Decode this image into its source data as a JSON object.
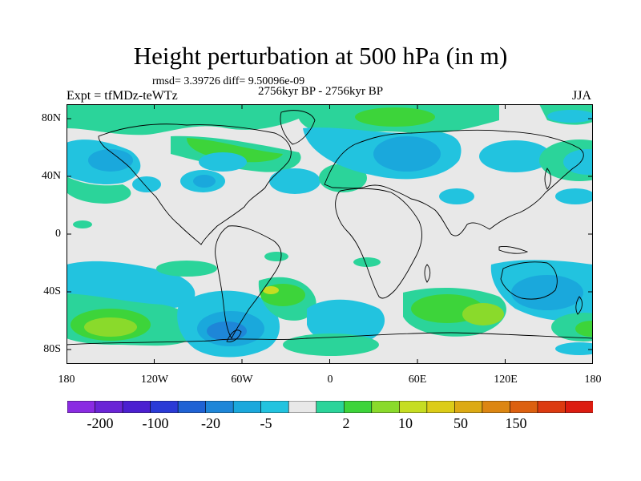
{
  "title": "Height perturbation at 500 hPa (in m)",
  "stats": "rmsd= 3.39726 diff= 9.50096e-09",
  "period": "2756kyr BP - 2756kyr BP",
  "experiment": "Expt = tfMDz-teWTz",
  "season": "JJA",
  "lat_ticks": [
    "80N",
    "40N",
    "0",
    "40S",
    "80S"
  ],
  "lon_ticks": [
    "180",
    "120W",
    "60W",
    "0",
    "60E",
    "120E",
    "180"
  ],
  "colorbar": {
    "labels": [
      "-200",
      "-100",
      "-20",
      "-5",
      "2",
      "10",
      "50",
      "150"
    ],
    "colors": [
      "#8a2be2",
      "#6a24d6",
      "#4b1fd0",
      "#2a3ad6",
      "#1f62d4",
      "#1e86d8",
      "#1aa8dc",
      "#22c3df",
      "#e8e8e8",
      "#2bd49a",
      "#3dd43a",
      "#8ada2b",
      "#c6dd22",
      "#dccc18",
      "#dcaa14",
      "#dc8612",
      "#dc6010",
      "#dc3a10",
      "#dc1c10"
    ]
  },
  "palette": {
    "background": "#e8e8e8",
    "light_blue": "#22c3df",
    "mid_blue": "#1aa8dc",
    "blue": "#1e86d8",
    "dark_blue": "#1f62d4",
    "green": "#2bd49a",
    "bright_green": "#3dd43a",
    "yellow_green": "#c6dd22"
  }
}
